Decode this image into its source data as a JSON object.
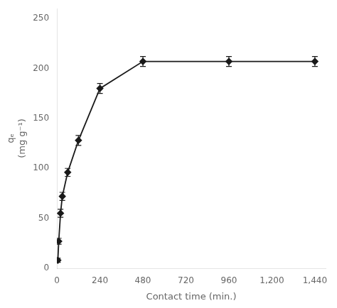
{
  "chart_data": {
    "type": "line",
    "xlabel": "Contact time (min.)",
    "ylabel": [
      "qₑ",
      "(mg g⁻¹)"
    ],
    "x": [
      5,
      10,
      20,
      30,
      60,
      120,
      240,
      480,
      960,
      1440
    ],
    "values": [
      8,
      27,
      55,
      72,
      96,
      128,
      180,
      207,
      207,
      207
    ],
    "yerr": [
      2,
      3,
      4,
      4,
      4,
      5,
      5,
      5,
      5,
      5
    ],
    "color": "#1a1a1a",
    "marker": "diamond",
    "line_style": "solid",
    "xlim": [
      0,
      1500
    ],
    "ylim": [
      0,
      260
    ],
    "xticks": [
      0,
      240,
      480,
      720,
      960,
      1200,
      1440
    ],
    "yticks": [
      0,
      50,
      100,
      150,
      200,
      250
    ],
    "grid": false
  }
}
